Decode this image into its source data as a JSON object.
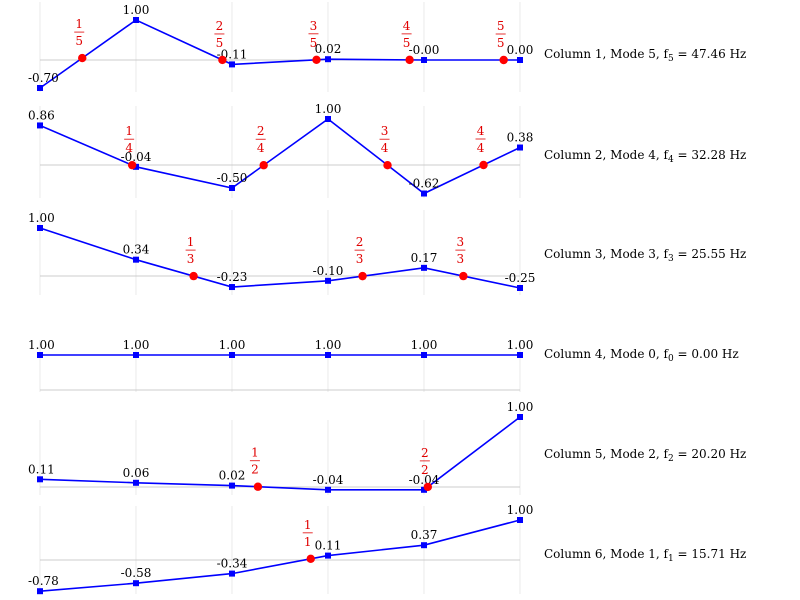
{
  "chart_data": {
    "type": "line",
    "x": [
      0,
      1,
      2,
      3,
      4,
      5
    ],
    "colors": {
      "line": "#0000ff",
      "marker": "#0000ff",
      "node": "#ff0000",
      "node_label": "#e00000",
      "axis": "#cccccc",
      "grid": "#dddddd"
    },
    "panels": [
      {
        "title": "Column 1, Mode 5, f",
        "subscript": "5",
        "freq": "47.46 Hz",
        "values": [
          -0.7,
          1.0,
          -0.11,
          0.02,
          -0.0,
          0.0
        ],
        "value_labels": [
          "-0.70",
          "1.00",
          "-0.11",
          "0.02",
          "-0.00",
          "0.00"
        ],
        "nodes": [
          {
            "num": "1",
            "den": "5",
            "x": 0.44
          },
          {
            "num": "2",
            "den": "5",
            "x": 1.9
          },
          {
            "num": "3",
            "den": "5",
            "x": 2.88
          },
          {
            "num": "4",
            "den": "5",
            "x": 3.85
          },
          {
            "num": "5",
            "den": "5",
            "x": 4.83
          }
        ]
      },
      {
        "title": "Column 2, Mode 4, f",
        "subscript": "4",
        "freq": "32.28 Hz",
        "values": [
          0.86,
          -0.04,
          -0.5,
          1.0,
          -0.62,
          0.38
        ],
        "value_labels": [
          "0.86",
          "-0.04",
          "-0.50",
          "1.00",
          "-0.62",
          "0.38"
        ],
        "nodes": [
          {
            "num": "1",
            "den": "4",
            "x": 0.96
          },
          {
            "num": "2",
            "den": "4",
            "x": 2.33
          },
          {
            "num": "3",
            "den": "4",
            "x": 3.62
          },
          {
            "num": "4",
            "den": "4",
            "x": 4.62
          }
        ]
      },
      {
        "title": "Column 3, Mode 3, f",
        "subscript": "3",
        "freq": "25.55 Hz",
        "values": [
          1.0,
          0.34,
          -0.23,
          -0.1,
          0.17,
          -0.25
        ],
        "value_labels": [
          "1.00",
          "0.34",
          "-0.23",
          "-0.10",
          "0.17",
          "-0.25"
        ],
        "nodes": [
          {
            "num": "1",
            "den": "3",
            "x": 1.6
          },
          {
            "num": "2",
            "den": "3",
            "x": 3.36
          },
          {
            "num": "3",
            "den": "3",
            "x": 4.41
          }
        ]
      },
      {
        "title": "Column 4, Mode 0, f",
        "subscript": "0",
        "freq": "0.00 Hz",
        "values": [
          1.0,
          1.0,
          1.0,
          1.0,
          1.0,
          1.0
        ],
        "value_labels": [
          "1.00",
          "1.00",
          "1.00",
          "1.00",
          "1.00",
          "1.00"
        ],
        "nodes": []
      },
      {
        "title": "Column 5, Mode 2, f",
        "subscript": "2",
        "freq": "20.20 Hz",
        "values": [
          0.11,
          0.06,
          0.02,
          -0.04,
          -0.04,
          1.0
        ],
        "value_labels": [
          "0.11",
          "0.06",
          "0.02",
          "-0.04",
          "-0.04",
          "1.00"
        ],
        "nodes": [
          {
            "num": "1",
            "den": "2",
            "x": 2.27
          },
          {
            "num": "2",
            "den": "2",
            "x": 4.04
          }
        ]
      },
      {
        "title": "Column 6, Mode 1, f",
        "subscript": "1",
        "freq": "15.71 Hz",
        "values": [
          -0.78,
          -0.58,
          -0.34,
          0.11,
          0.37,
          1.0
        ],
        "value_labels": [
          "-0.78",
          "-0.58",
          "-0.34",
          "0.11",
          "0.37",
          "1.00"
        ],
        "nodes": [
          {
            "num": "1",
            "den": "1",
            "x": 2.82
          }
        ]
      }
    ]
  }
}
